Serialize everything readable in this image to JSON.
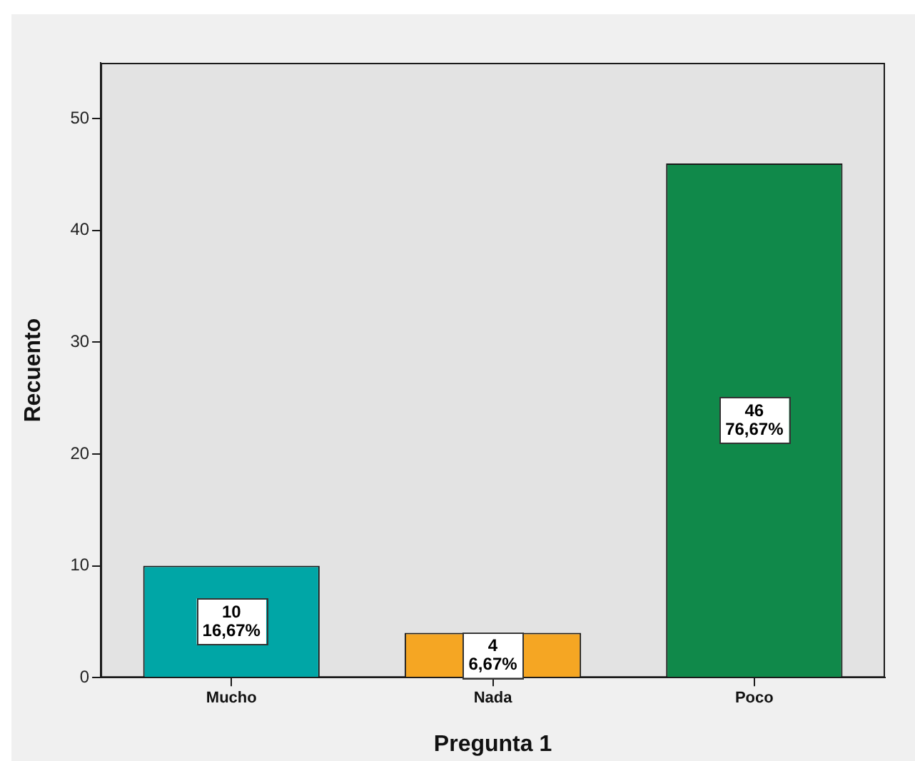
{
  "chart_data": {
    "type": "bar",
    "xlabel": "Pregunta 1",
    "ylabel": "Recuento",
    "categories": [
      "Mucho",
      "Nada",
      "Poco"
    ],
    "values": [
      10,
      4,
      46
    ],
    "colors": [
      "#00a6a6",
      "#f5a623",
      "#10894a"
    ],
    "value_labels": [
      "10\n16,67%",
      "4\n6,67%",
      "46\n76,67%"
    ],
    "ylim": [
      0,
      55
    ],
    "yticks": [
      0,
      10,
      20,
      30,
      40,
      50
    ],
    "grid": false,
    "legend": false
  }
}
